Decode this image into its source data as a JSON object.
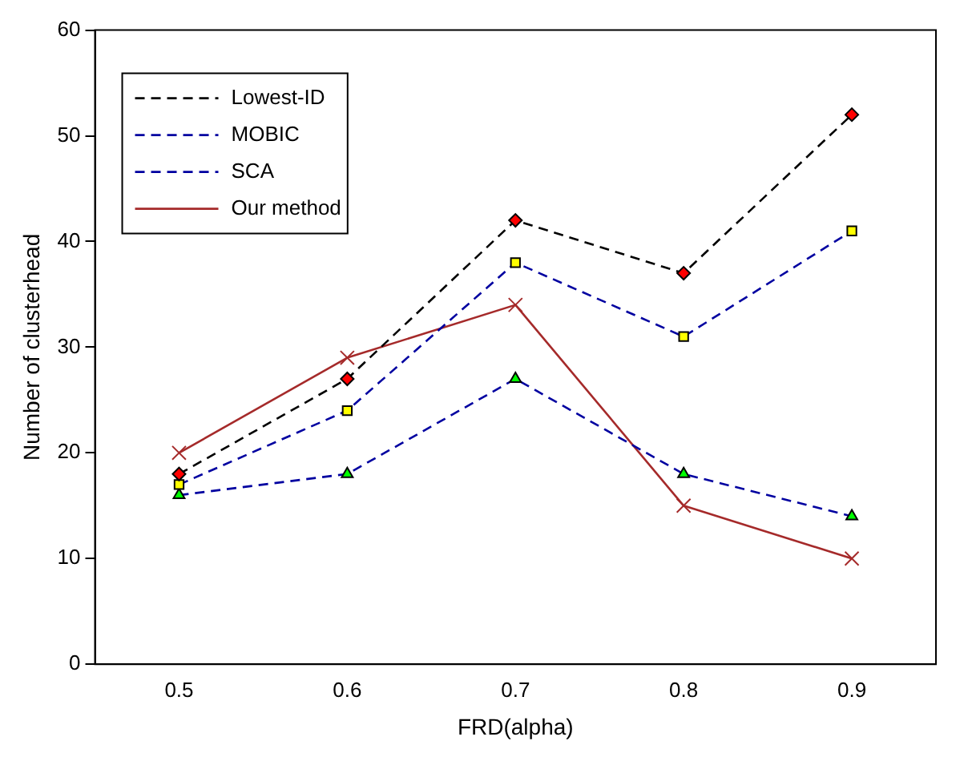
{
  "chart_data": {
    "type": "line",
    "xlabel": "FRD(alpha)",
    "ylabel": "Number of clusterhead",
    "categories": [
      "0.5",
      "0.6",
      "0.7",
      "0.8",
      "0.9"
    ],
    "ylim": [
      0,
      60
    ],
    "yticks": [
      0,
      10,
      20,
      30,
      40,
      50,
      60
    ],
    "grid": false,
    "legend": "top left",
    "series": [
      {
        "name": "Lowest-ID",
        "color": "#000000",
        "colors": [
          "#ff0000",
          "#ff0000",
          "#ff0000",
          "#ff0000",
          "#ff0000"
        ],
        "marker": "diamond",
        "line_style": "dashed",
        "values": [
          18,
          27,
          42,
          37,
          52
        ]
      },
      {
        "name": "MOBIC",
        "color": "#0000a0",
        "colors": [
          "#ffff00",
          "#ffff00",
          "#ffff00",
          "#ffff00",
          "#ffff00"
        ],
        "marker": "square",
        "line_style": "dashed",
        "values": [
          17,
          24,
          38,
          31,
          41
        ]
      },
      {
        "name": "SCA",
        "color": "#0000a0",
        "colors": [
          "#00ff00",
          "#00ff00",
          "#00ff00",
          "#00ff00",
          "#00ff00"
        ],
        "marker": "triangle",
        "line_style": "dashed",
        "values": [
          16,
          18,
          27,
          18,
          14
        ]
      },
      {
        "name": "Our method",
        "color": "#a52a2a",
        "colors": [
          "#a52a2a",
          "#a52a2a",
          "#a52a2a",
          "#a52a2a",
          "#a52a2a"
        ],
        "marker": "cross",
        "line_style": "solid",
        "values": [
          20,
          29,
          34,
          15,
          10
        ]
      }
    ]
  }
}
